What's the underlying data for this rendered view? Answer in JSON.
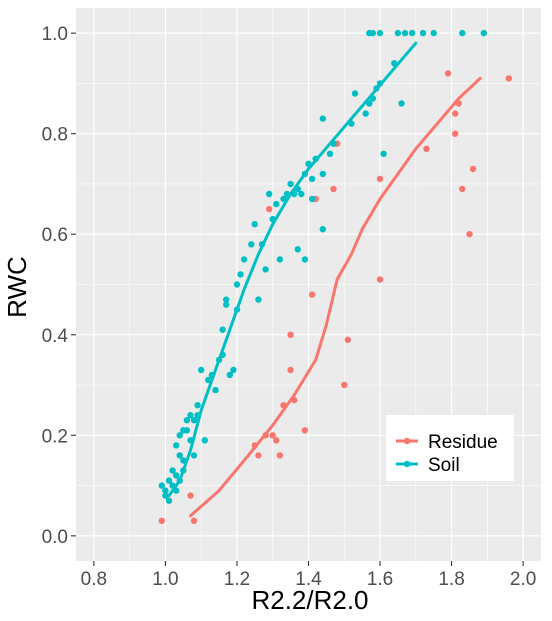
{
  "chart_data": {
    "type": "scatter",
    "xlabel": "R2.2/R2.0",
    "ylabel": "RWC",
    "xlim": [
      0.75,
      2.05
    ],
    "ylim": [
      -0.05,
      1.05
    ],
    "xticks": [
      "0.8",
      "1.0",
      "1.2",
      "1.4",
      "1.6",
      "1.8",
      "2.0"
    ],
    "yticks": [
      "0.0",
      "0.2",
      "0.4",
      "0.6",
      "0.8",
      "1.0"
    ],
    "grid": true,
    "legend_position": "bottom-right",
    "series": [
      {
        "name": "Residue",
        "color": "#F8766D",
        "points": [
          [
            0.99,
            0.03
          ],
          [
            1.07,
            0.08
          ],
          [
            1.08,
            0.03
          ],
          [
            1.25,
            0.18
          ],
          [
            1.26,
            0.16
          ],
          [
            1.28,
            0.2
          ],
          [
            1.3,
            0.2
          ],
          [
            1.31,
            0.19
          ],
          [
            1.32,
            0.16
          ],
          [
            1.33,
            0.26
          ],
          [
            1.36,
            0.27
          ],
          [
            1.35,
            0.33
          ],
          [
            1.35,
            0.4
          ],
          [
            1.39,
            0.21
          ],
          [
            1.41,
            0.48
          ],
          [
            1.42,
            0.67
          ],
          [
            1.29,
            0.65
          ],
          [
            1.47,
            0.69
          ],
          [
            1.48,
            0.78
          ],
          [
            1.5,
            0.3
          ],
          [
            1.51,
            0.39
          ],
          [
            1.6,
            0.51
          ],
          [
            1.6,
            0.71
          ],
          [
            1.73,
            0.77
          ],
          [
            1.79,
            0.92
          ],
          [
            1.81,
            0.84
          ],
          [
            1.81,
            0.8
          ],
          [
            1.82,
            0.86
          ],
          [
            1.83,
            0.69
          ],
          [
            1.85,
            0.6
          ],
          [
            1.86,
            0.73
          ],
          [
            1.96,
            0.91
          ]
        ],
        "smooth": [
          [
            1.07,
            0.04
          ],
          [
            1.15,
            0.09
          ],
          [
            1.22,
            0.15
          ],
          [
            1.3,
            0.22
          ],
          [
            1.36,
            0.28
          ],
          [
            1.42,
            0.35
          ],
          [
            1.45,
            0.42
          ],
          [
            1.48,
            0.51
          ],
          [
            1.52,
            0.56
          ],
          [
            1.55,
            0.61
          ],
          [
            1.6,
            0.67
          ],
          [
            1.65,
            0.72
          ],
          [
            1.7,
            0.77
          ],
          [
            1.76,
            0.82
          ],
          [
            1.82,
            0.87
          ],
          [
            1.88,
            0.91
          ]
        ]
      },
      {
        "name": "Soil",
        "color": "#00BFC4",
        "points": [
          [
            0.99,
            0.1
          ],
          [
            1.0,
            0.09
          ],
          [
            1.0,
            0.08
          ],
          [
            1.01,
            0.11
          ],
          [
            1.01,
            0.07
          ],
          [
            1.02,
            0.1
          ],
          [
            1.02,
            0.13
          ],
          [
            1.03,
            0.09
          ],
          [
            1.03,
            0.12
          ],
          [
            1.03,
            0.18
          ],
          [
            1.04,
            0.11
          ],
          [
            1.04,
            0.16
          ],
          [
            1.04,
            0.2
          ],
          [
            1.05,
            0.13
          ],
          [
            1.05,
            0.21
          ],
          [
            1.05,
            0.15
          ],
          [
            1.06,
            0.23
          ],
          [
            1.06,
            0.21
          ],
          [
            1.07,
            0.19
          ],
          [
            1.07,
            0.24
          ],
          [
            1.08,
            0.23
          ],
          [
            1.08,
            0.16
          ],
          [
            1.09,
            0.26
          ],
          [
            1.09,
            0.24
          ],
          [
            1.1,
            0.33
          ],
          [
            1.11,
            0.19
          ],
          [
            1.12,
            0.31
          ],
          [
            1.13,
            0.32
          ],
          [
            1.14,
            0.29
          ],
          [
            1.15,
            0.35
          ],
          [
            1.16,
            0.41
          ],
          [
            1.16,
            0.36
          ],
          [
            1.17,
            0.47
          ],
          [
            1.17,
            0.46
          ],
          [
            1.18,
            0.32
          ],
          [
            1.19,
            0.33
          ],
          [
            1.2,
            0.5
          ],
          [
            1.2,
            0.45
          ],
          [
            1.21,
            0.52
          ],
          [
            1.22,
            0.55
          ],
          [
            1.24,
            0.58
          ],
          [
            1.25,
            0.62
          ],
          [
            1.26,
            0.47
          ],
          [
            1.27,
            0.58
          ],
          [
            1.28,
            0.53
          ],
          [
            1.29,
            0.68
          ],
          [
            1.3,
            0.63
          ],
          [
            1.31,
            0.66
          ],
          [
            1.32,
            0.55
          ],
          [
            1.33,
            0.67
          ],
          [
            1.34,
            0.68
          ],
          [
            1.35,
            0.7
          ],
          [
            1.36,
            0.68
          ],
          [
            1.37,
            0.69
          ],
          [
            1.37,
            0.57
          ],
          [
            1.38,
            0.68
          ],
          [
            1.39,
            0.72
          ],
          [
            1.39,
            0.55
          ],
          [
            1.4,
            0.74
          ],
          [
            1.41,
            0.71
          ],
          [
            1.41,
            0.67
          ],
          [
            1.42,
            0.75
          ],
          [
            1.44,
            0.72
          ],
          [
            1.44,
            0.61
          ],
          [
            1.44,
            0.83
          ],
          [
            1.46,
            0.76
          ],
          [
            1.47,
            0.78
          ],
          [
            1.52,
            0.82
          ],
          [
            1.53,
            0.88
          ],
          [
            1.56,
            0.84
          ],
          [
            1.57,
            0.86
          ],
          [
            1.58,
            0.87
          ],
          [
            1.59,
            0.89
          ],
          [
            1.6,
            0.9
          ],
          [
            1.61,
            0.76
          ],
          [
            1.64,
            0.94
          ],
          [
            1.66,
            0.86
          ],
          [
            1.57,
            1.0
          ],
          [
            1.58,
            1.0
          ],
          [
            1.6,
            1.0
          ],
          [
            1.65,
            1.0
          ],
          [
            1.67,
            1.0
          ],
          [
            1.69,
            1.0
          ],
          [
            1.72,
            1.0
          ],
          [
            1.75,
            1.0
          ],
          [
            1.83,
            1.0
          ],
          [
            1.89,
            1.0
          ]
        ],
        "smooth": [
          [
            1.01,
            0.08
          ],
          [
            1.04,
            0.11
          ],
          [
            1.07,
            0.17
          ],
          [
            1.1,
            0.25
          ],
          [
            1.14,
            0.33
          ],
          [
            1.18,
            0.41
          ],
          [
            1.22,
            0.49
          ],
          [
            1.26,
            0.56
          ],
          [
            1.3,
            0.62
          ],
          [
            1.35,
            0.68
          ],
          [
            1.4,
            0.73
          ],
          [
            1.46,
            0.78
          ],
          [
            1.52,
            0.83
          ],
          [
            1.58,
            0.88
          ],
          [
            1.64,
            0.93
          ],
          [
            1.7,
            0.98
          ]
        ]
      }
    ]
  }
}
